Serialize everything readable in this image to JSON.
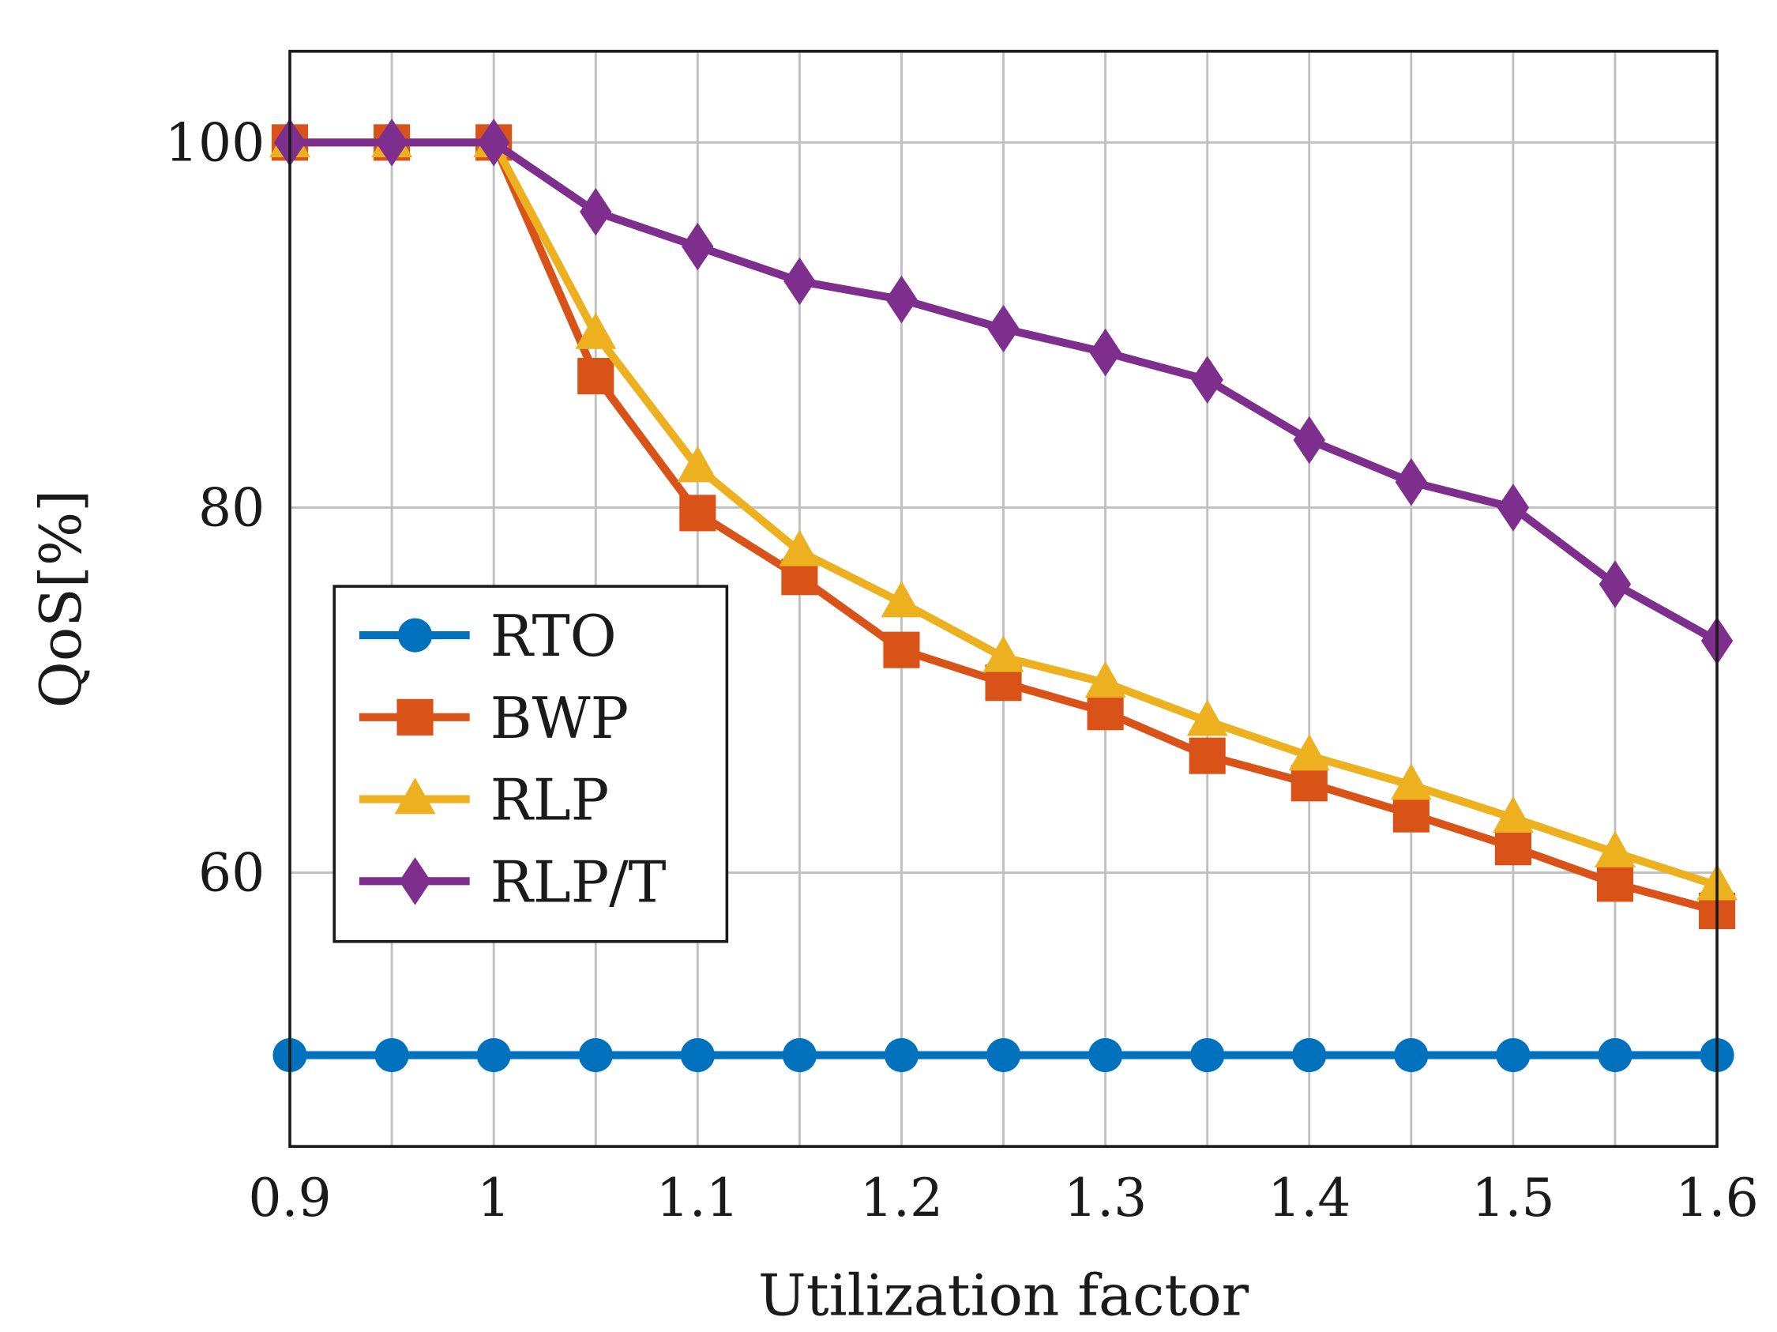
{
  "chart_data": {
    "type": "line",
    "title": "",
    "xlabel": "Utilization factor",
    "ylabel": "QoS[%]",
    "xlim": [
      0.9,
      1.6
    ],
    "ylim": [
      45,
      105
    ],
    "grid": true,
    "legend_position": "left-middle",
    "x": [
      0.9,
      0.95,
      1.0,
      1.05,
      1.1,
      1.15,
      1.2,
      1.25,
      1.3,
      1.35,
      1.4,
      1.45,
      1.5,
      1.55,
      1.6
    ],
    "xticks": [
      0.9,
      1.0,
      1.1,
      1.2,
      1.3,
      1.4,
      1.5,
      1.6
    ],
    "xtick_labels": [
      "0.9",
      "1",
      "1.1",
      "1.2",
      "1.3",
      "1.4",
      "1.5",
      "1.6"
    ],
    "yticks": [
      60,
      80,
      100
    ],
    "ytick_labels": [
      "60",
      "80",
      "100"
    ],
    "series": [
      {
        "name": "RTO",
        "color": "#0072BD",
        "marker": "circle",
        "values": [
          50,
          50,
          50,
          50,
          50,
          50,
          50,
          50,
          50,
          50,
          50,
          50,
          50,
          50,
          50
        ]
      },
      {
        "name": "BWP",
        "color": "#D95319",
        "marker": "square",
        "values": [
          100,
          100,
          100,
          87.2,
          79.7,
          76.2,
          72.2,
          70.4,
          68.8,
          66.4,
          64.9,
          63.2,
          61.4,
          59.4,
          57.9
        ]
      },
      {
        "name": "RLP",
        "color": "#EDB120",
        "marker": "triangle",
        "values": [
          100,
          100,
          100,
          89.5,
          82.2,
          77.6,
          74.8,
          71.8,
          70.4,
          68.3,
          66.4,
          64.8,
          63.0,
          61.1,
          59.3
        ]
      },
      {
        "name": "RLP/T",
        "color": "#7E2F8E",
        "marker": "diamond",
        "values": [
          100,
          100,
          100,
          96.2,
          94.3,
          92.4,
          91.4,
          89.8,
          88.5,
          87.0,
          83.7,
          81.4,
          80.0,
          75.8,
          72.7
        ]
      }
    ]
  }
}
